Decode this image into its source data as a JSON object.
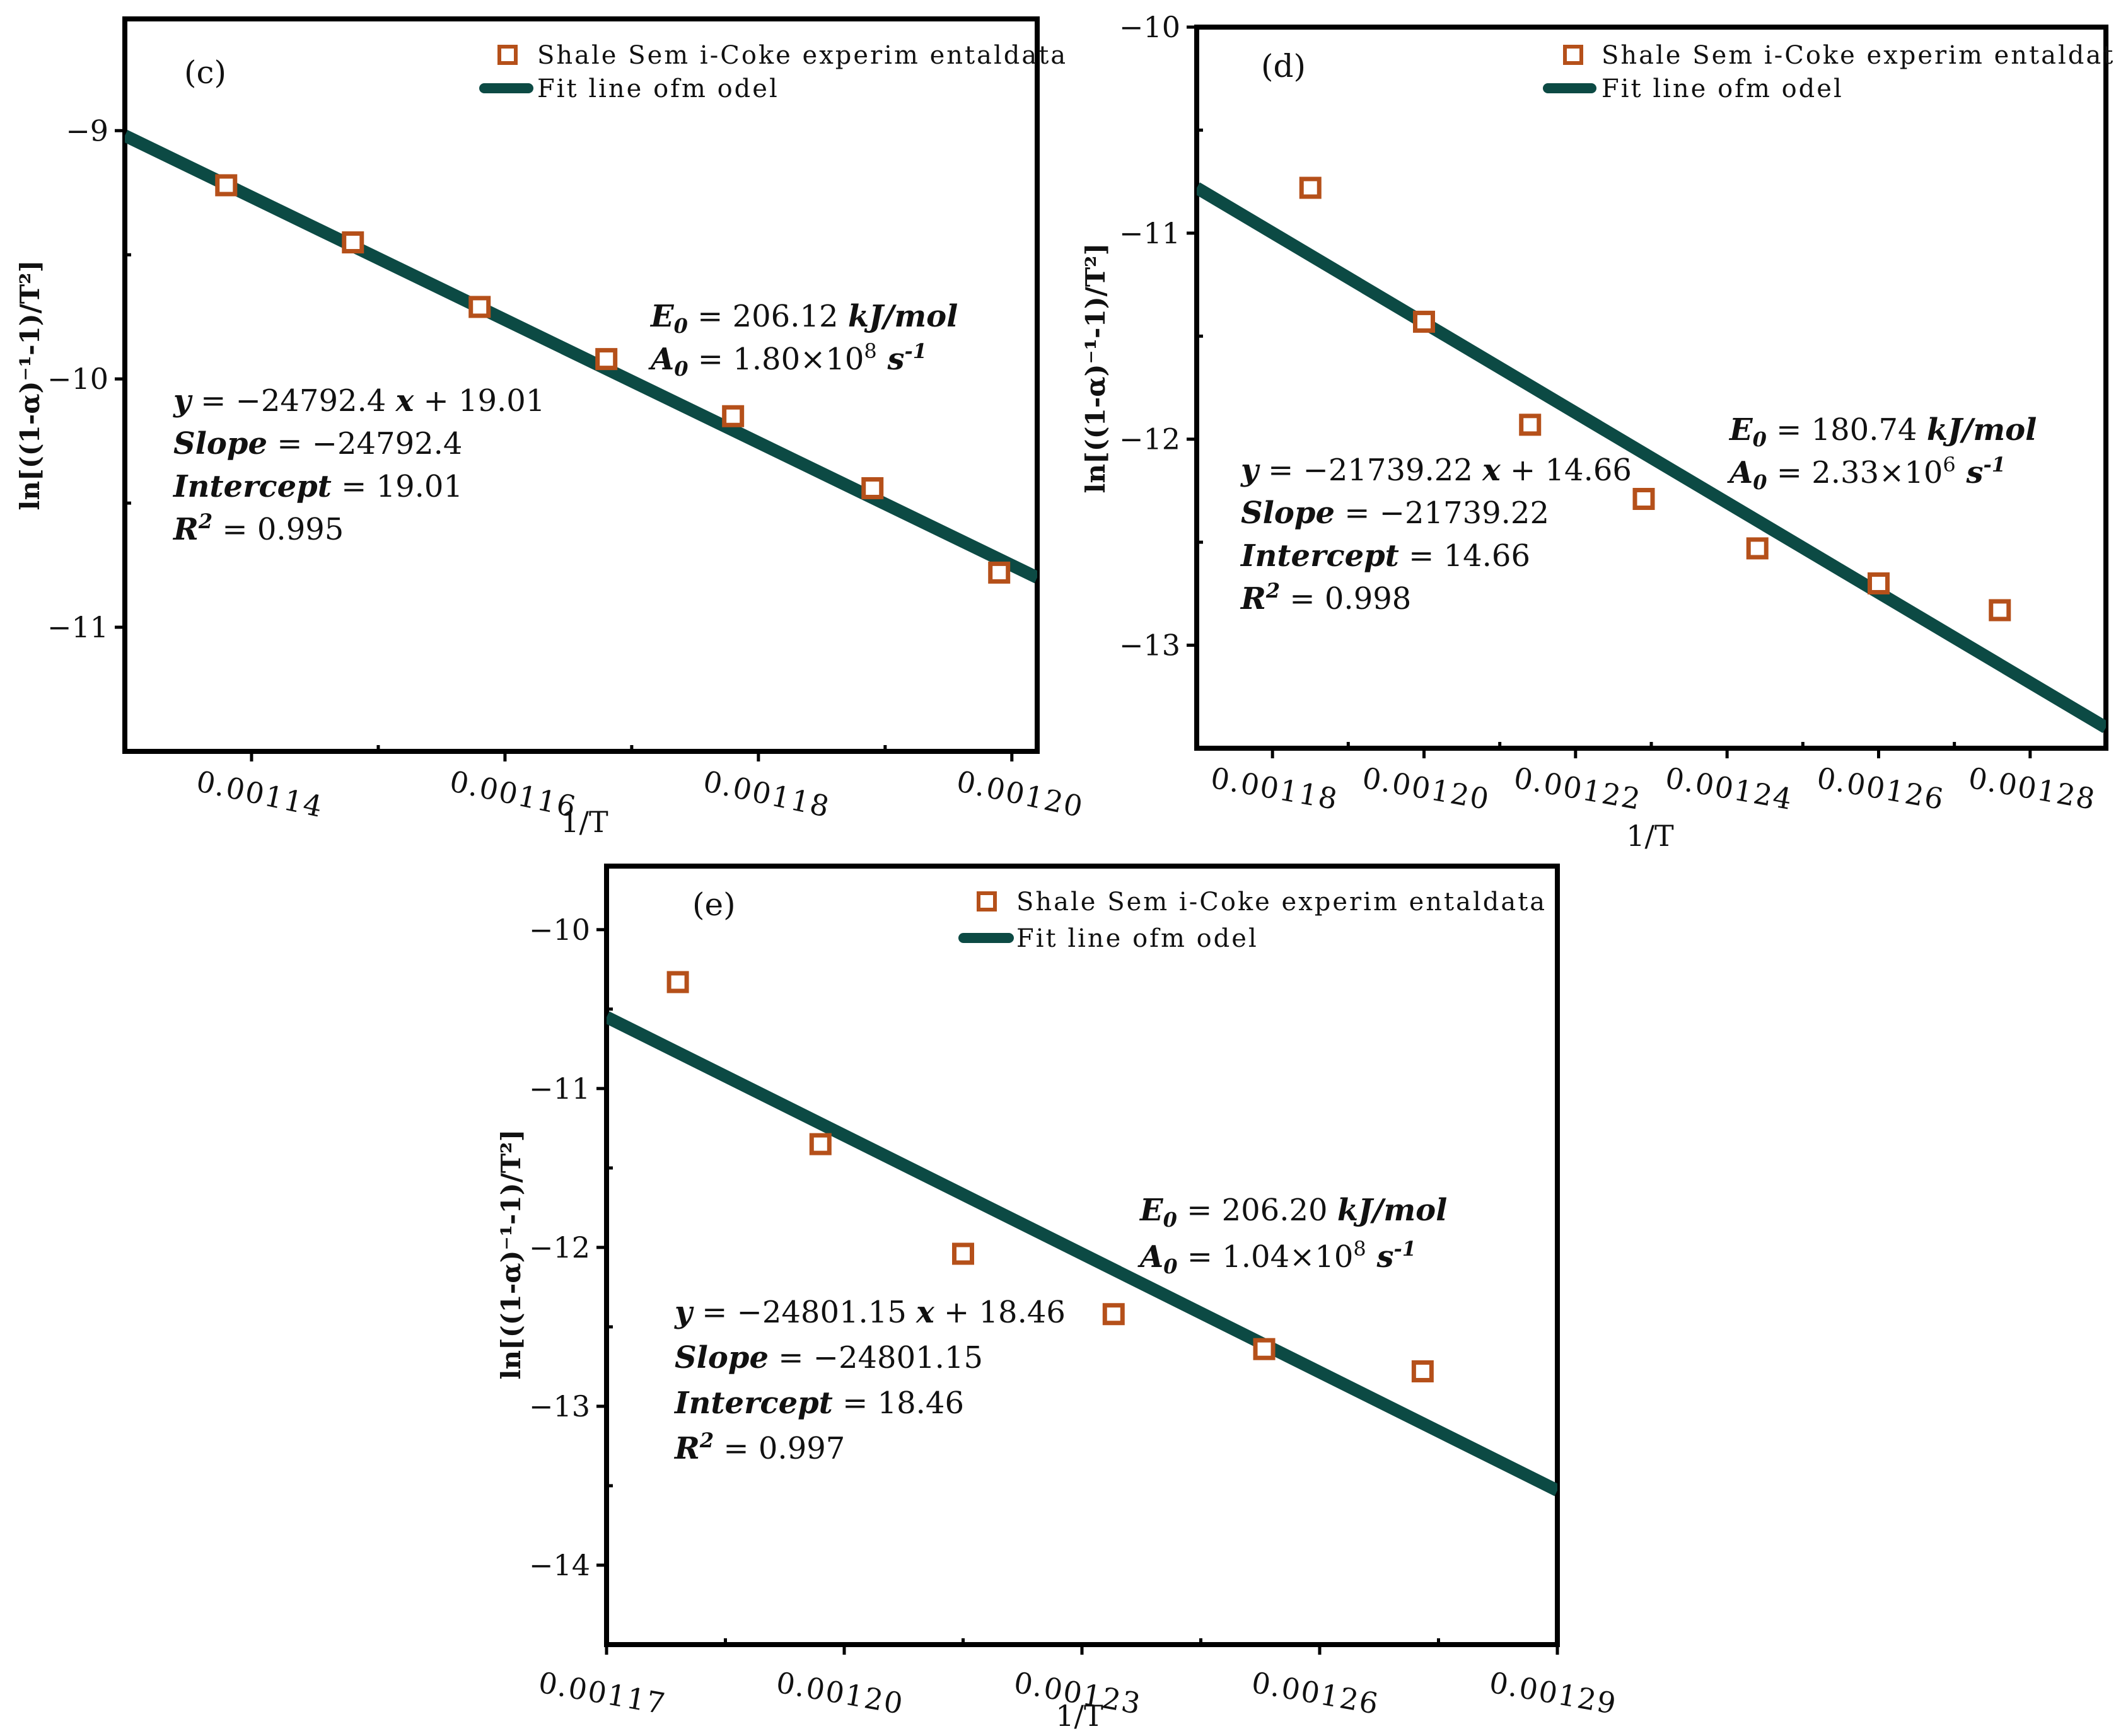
{
  "colors": {
    "marker": "#b5501a",
    "fit_line": "#0c4a44",
    "axis": "#000000"
  },
  "chart_data": [
    {
      "type": "scatter",
      "panel_label": "(c)",
      "xlabel": "1/T",
      "ylabel": "ln[((1-α)⁻¹-1)/T²]",
      "xlim": [
        0.00113,
        0.001202
      ],
      "ylim": [
        -11.5,
        -8.55
      ],
      "xticks": [
        0.00114,
        0.00116,
        0.00118,
        0.0012
      ],
      "xtick_labels": [
        "0.00114",
        "0.00116",
        "0.00118",
        "0.00120"
      ],
      "yticks": [
        -9,
        -10,
        -11
      ],
      "ytick_labels": [
        "−9",
        "−10",
        "−11"
      ],
      "legend": {
        "marker_label": "Shale Sem i-Coke experim entaldata",
        "line_label": "Fit line ofm odel",
        "placement": "top-right"
      },
      "series": [
        {
          "name": "Shale Sem i-Coke experim entaldata",
          "kind": "points",
          "x": [
            0.001138,
            0.001148,
            0.001158,
            0.001168,
            0.001178,
            0.001189,
            0.001199
          ],
          "y": [
            -9.22,
            -9.45,
            -9.71,
            -9.92,
            -10.15,
            -10.44,
            -10.78
          ]
        },
        {
          "name": "Fit line ofm odel",
          "kind": "line",
          "x": [
            0.00113,
            0.001202
          ],
          "y": [
            -9.02,
            -10.8
          ]
        }
      ],
      "annotations": {
        "energy": {
          "key": "E",
          "sub": "0",
          "value": " = 206.12 ",
          "unit": "kJ/mol"
        },
        "factor": {
          "key": "A",
          "sub": "0",
          "value": " = 1.80×10",
          "exp": "8",
          "unit": " s",
          "unit_exp": "-1"
        },
        "equation": {
          "y_key": "y",
          "middle": " = −24792.4 ",
          "x_key": "x",
          "tail": " + 19.01"
        },
        "slope": {
          "key": "Slope",
          "value": " = −24792.4"
        },
        "intercept": {
          "key": "Intercept",
          "value": " = 19.01"
        },
        "r2": {
          "key": "R",
          "exp": "2",
          "value": " = 0.995"
        }
      }
    },
    {
      "type": "scatter",
      "panel_label": "(d)",
      "xlabel": "1/T",
      "ylabel": "ln[((1-α)⁻¹-1)/T²]",
      "xlim": [
        0.00117,
        0.00129
      ],
      "ylim": [
        -13.5,
        -10.0
      ],
      "xticks": [
        0.00118,
        0.0012,
        0.00122,
        0.00124,
        0.00126,
        0.00128
      ],
      "xtick_labels": [
        "0.00118",
        "0.00120",
        "0.00122",
        "0.00124",
        "0.00126",
        "0.00128"
      ],
      "yticks": [
        -10,
        -11,
        -12,
        -13
      ],
      "ytick_labels": [
        "−10",
        "−11",
        "−12",
        "−13"
      ],
      "legend": {
        "marker_label": "Shale Sem i-Coke experim entaldata",
        "line_label": "Fit line ofm odel",
        "placement": "top-right"
      },
      "series": [
        {
          "name": "Shale Sem i-Coke experim entaldata",
          "kind": "points",
          "x": [
            0.001185,
            0.0012,
            0.001214,
            0.001229,
            0.001244,
            0.00126,
            0.001276
          ],
          "y": [
            -10.78,
            -11.43,
            -11.93,
            -12.29,
            -12.53,
            -12.7,
            -12.83
          ]
        },
        {
          "name": "Fit line ofm odel",
          "kind": "line",
          "x": [
            0.00117,
            0.00129
          ],
          "y": [
            -10.78,
            -13.4
          ]
        }
      ],
      "annotations": {
        "energy": {
          "key": "E",
          "sub": "0",
          "value": " = 180.74 ",
          "unit": "kJ/mol"
        },
        "factor": {
          "key": "A",
          "sub": "0",
          "value": " = 2.33×10",
          "exp": "6",
          "unit": " s",
          "unit_exp": "-1"
        },
        "equation": {
          "y_key": "y",
          "middle": " = −21739.22 ",
          "x_key": "x",
          "tail": " + 14.66"
        },
        "slope": {
          "key": "Slope",
          "value": " = −21739.22"
        },
        "intercept": {
          "key": "Intercept",
          "value": " = 14.66"
        },
        "r2": {
          "key": "R",
          "exp": "2",
          "value": " = 0.998"
        }
      }
    },
    {
      "type": "scatter",
      "panel_label": "(e)",
      "xlabel": "1/T",
      "ylabel": "ln[((1-α)⁻¹-1)/T²]",
      "xlim": [
        0.00117,
        0.00129
      ],
      "ylim": [
        -14.5,
        -9.6
      ],
      "xticks": [
        0.00117,
        0.0012,
        0.00123,
        0.00126,
        0.00129
      ],
      "xtick_labels": [
        "0.00117",
        "0.00120",
        "0.00123",
        "0.00126",
        "0.00129"
      ],
      "yticks": [
        -10,
        -11,
        -12,
        -13,
        -14
      ],
      "ytick_labels": [
        "−10",
        "−11",
        "−12",
        "−13",
        "−14"
      ],
      "legend": {
        "marker_label": "Shale Sem i-Coke experim entaldata",
        "line_label": "Fit line ofm odel",
        "placement": "top-right"
      },
      "series": [
        {
          "name": "Shale Sem i-Coke experim entaldata",
          "kind": "points",
          "x": [
            0.001179,
            0.001197,
            0.001215,
            0.001234,
            0.001253,
            0.001273
          ],
          "y": [
            -10.33,
            -11.35,
            -12.04,
            -12.42,
            -12.64,
            -12.78
          ]
        },
        {
          "name": "Fit line ofm odel",
          "kind": "line",
          "x": [
            0.00117,
            0.00129
          ],
          "y": [
            -10.55,
            -13.53
          ]
        }
      ],
      "annotations": {
        "energy": {
          "key": "E",
          "sub": "0",
          "value": " = 206.20 ",
          "unit": "kJ/mol"
        },
        "factor": {
          "key": "A",
          "sub": "0",
          "value": " = 1.04×10",
          "exp": "8",
          "unit": " s",
          "unit_exp": "-1"
        },
        "equation": {
          "y_key": "y",
          "middle": " = −24801.15 ",
          "x_key": "x",
          "tail": " + 18.46"
        },
        "slope": {
          "key": "Slope",
          "value": " = −24801.15"
        },
        "intercept": {
          "key": "Intercept",
          "value": " = 18.46"
        },
        "r2": {
          "key": "R",
          "exp": "2",
          "value": " = 0.997"
        }
      }
    }
  ]
}
